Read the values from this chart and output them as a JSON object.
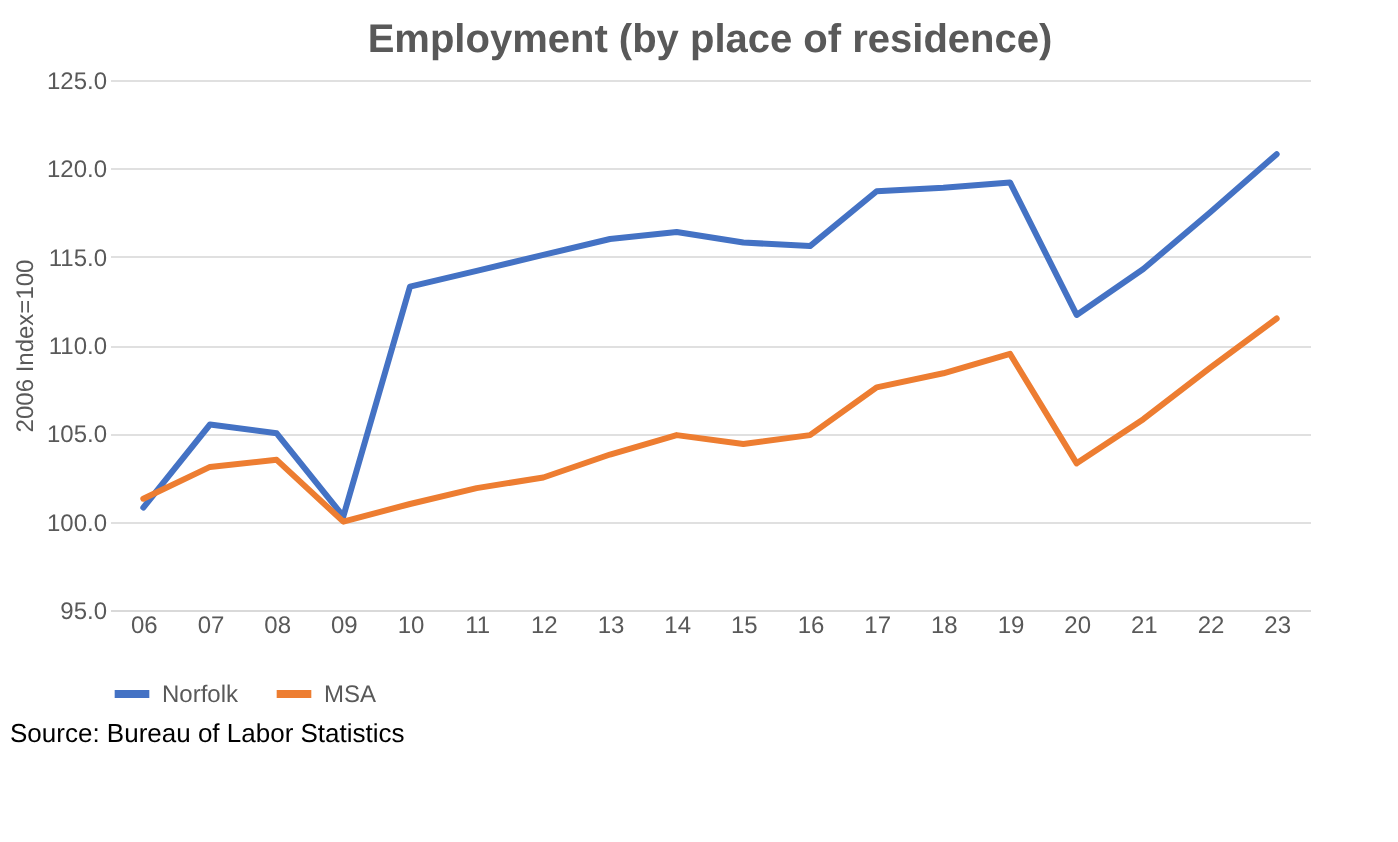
{
  "chart_data": {
    "type": "line",
    "title": "Employment (by place of residence)",
    "ylabel": "2006 Index=100",
    "categories": [
      "06",
      "07",
      "08",
      "09",
      "10",
      "11",
      "12",
      "13",
      "14",
      "15",
      "16",
      "17",
      "18",
      "19",
      "20",
      "21",
      "22",
      "23"
    ],
    "series": [
      {
        "name": "Norfolk",
        "color": "#4472c4",
        "values": [
          100.8,
          105.5,
          105.0,
          100.3,
          113.3,
          114.2,
          115.1,
          116.0,
          116.4,
          115.8,
          115.6,
          118.7,
          118.9,
          119.2,
          111.7,
          114.3,
          117.5,
          120.8
        ]
      },
      {
        "name": "MSA",
        "color": "#ed7d31",
        "values": [
          101.3,
          103.1,
          103.5,
          100.0,
          101.0,
          101.9,
          102.5,
          103.8,
          104.9,
          104.4,
          104.9,
          107.6,
          108.4,
          109.5,
          103.3,
          105.8,
          108.7,
          111.5
        ]
      }
    ],
    "ylim": [
      95,
      125
    ],
    "yticks": [
      {
        "value": 95,
        "label": "95.0"
      },
      {
        "value": 100,
        "label": "100.0"
      },
      {
        "value": 105,
        "label": "105.0"
      },
      {
        "value": 110,
        "label": "110.0"
      },
      {
        "value": 115,
        "label": "115.0"
      },
      {
        "value": 120,
        "label": "120.0"
      },
      {
        "value": 125,
        "label": "125.0"
      }
    ],
    "grid": "y",
    "legend": "bottom",
    "marker": "none",
    "line_style": "solid",
    "annotations": [
      "Source: Bureau of Labor Statistics"
    ]
  }
}
